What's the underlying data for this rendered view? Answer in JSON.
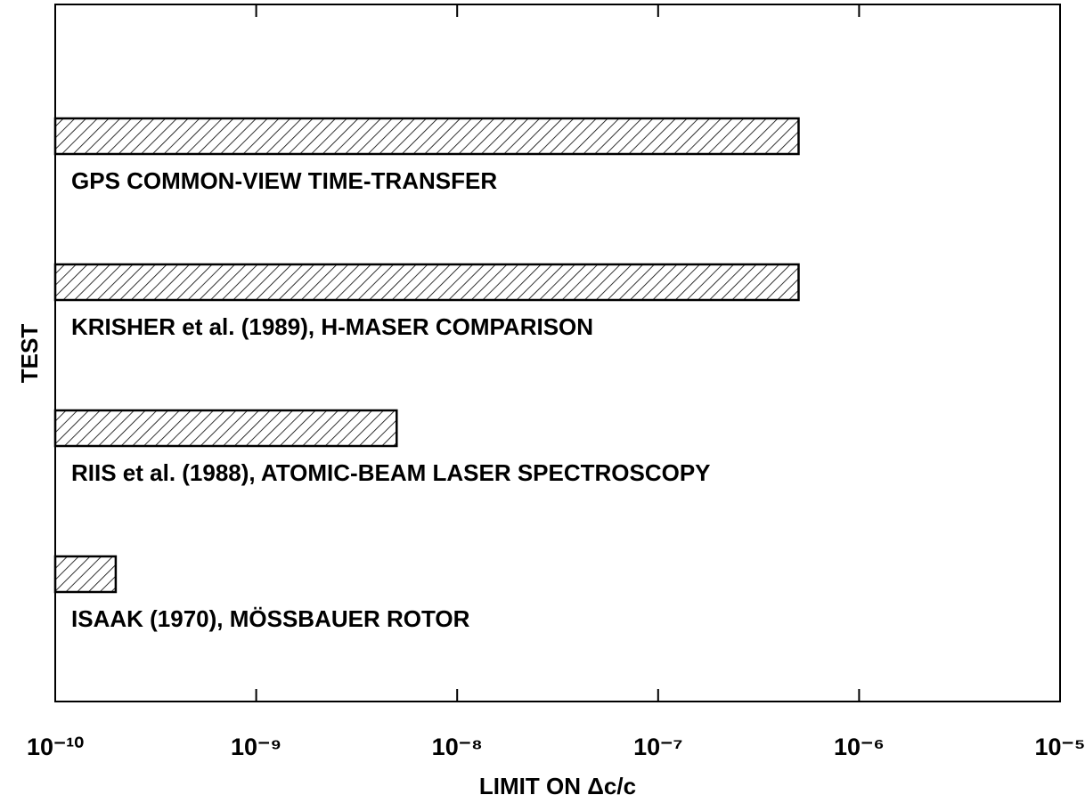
{
  "chart_data": {
    "type": "barh",
    "x_label": "LIMIT ON Δc/c",
    "y_label": "TEST",
    "categories": [
      "GPS COMMON-VIEW TIME-TRANSFER",
      "KRISHER et al. (1989), H-MASER COMPARISON",
      "RIIS et al. (1988), ATOMIC-BEAM LASER SPECTROSCOPY",
      "ISAAK (1970), MÖSSBAUER ROTOR"
    ],
    "values": [
      5e-07,
      5e-07,
      5e-09,
      2e-10
    ],
    "color": "#000000",
    "xscale": "log",
    "xlim": [
      1e-10,
      1e-05
    ],
    "xticks": [
      {
        "value": 1e-10,
        "label": "10⁻¹⁰"
      },
      {
        "value": 1e-09,
        "label": "10⁻⁹"
      },
      {
        "value": 1e-08,
        "label": "10⁻⁸"
      },
      {
        "value": 1e-07,
        "label": "10⁻⁷"
      },
      {
        "value": 1e-06,
        "label": "10⁻⁶"
      },
      {
        "value": 1e-05,
        "label": "10⁻⁵"
      }
    ]
  }
}
